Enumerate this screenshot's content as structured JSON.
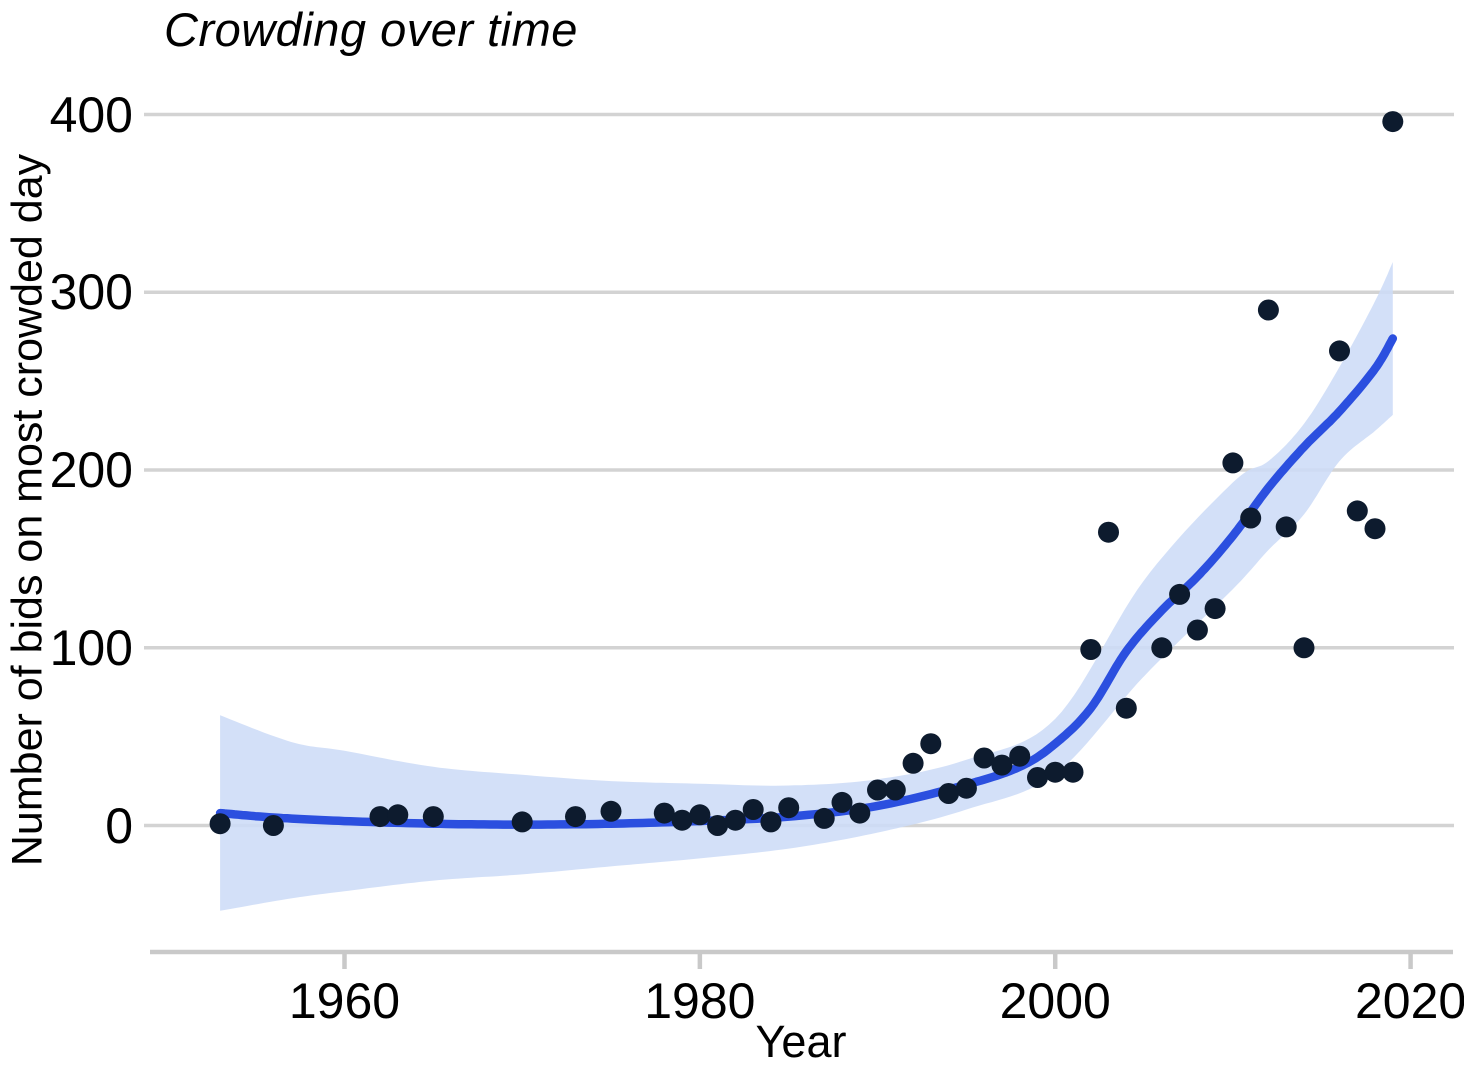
{
  "chart": {
    "title": "Crowding over time",
    "xlabel": "Year",
    "ylabel": "Number of bids on most crowded day"
  },
  "chart_data": {
    "type": "scatter",
    "title": "Crowding over time",
    "xlabel": "Year",
    "ylabel": "Number of bids on most crowded day",
    "x_ticks": [
      1960,
      1980,
      2000,
      2020
    ],
    "y_ticks": [
      0,
      100,
      200,
      300,
      400
    ],
    "xlim": [
      1949,
      2022.4
    ],
    "ylim": [
      -71,
      460
    ],
    "grid": "horizontal-only",
    "legend": "none",
    "points": [
      [
        1953,
        1
      ],
      [
        1956,
        0
      ],
      [
        1962,
        5
      ],
      [
        1963,
        6
      ],
      [
        1965,
        5
      ],
      [
        1970,
        2
      ],
      [
        1973,
        5
      ],
      [
        1975,
        8
      ],
      [
        1978,
        7
      ],
      [
        1979,
        3
      ],
      [
        1980,
        6
      ],
      [
        1981,
        0
      ],
      [
        1982,
        3
      ],
      [
        1983,
        9
      ],
      [
        1984,
        2
      ],
      [
        1985,
        10
      ],
      [
        1987,
        4
      ],
      [
        1988,
        13
      ],
      [
        1989,
        7
      ],
      [
        1990,
        20
      ],
      [
        1991,
        20
      ],
      [
        1992,
        35
      ],
      [
        1993,
        46
      ],
      [
        1994,
        18
      ],
      [
        1995,
        21
      ],
      [
        1996,
        38
      ],
      [
        1997,
        34
      ],
      [
        1998,
        39
      ],
      [
        1999,
        27
      ],
      [
        2000,
        30
      ],
      [
        2001,
        30
      ],
      [
        2002,
        99
      ],
      [
        2003,
        165
      ],
      [
        2004,
        66
      ],
      [
        2006,
        100
      ],
      [
        2007,
        130
      ],
      [
        2008,
        110
      ],
      [
        2009,
        122
      ],
      [
        2010,
        204
      ],
      [
        2011,
        173
      ],
      [
        2012,
        290
      ],
      [
        2013,
        168
      ],
      [
        2014,
        100
      ],
      [
        2016,
        267
      ],
      [
        2017,
        177
      ],
      [
        2018,
        167
      ],
      [
        2019,
        396
      ]
    ],
    "smooth_line": {
      "name": "loess-fit",
      "points": [
        [
          1953,
          7
        ],
        [
          1956,
          4.5
        ],
        [
          1960,
          2.5
        ],
        [
          1965,
          1
        ],
        [
          1970,
          0.5
        ],
        [
          1975,
          1
        ],
        [
          1980,
          2.5
        ],
        [
          1985,
          5
        ],
        [
          1990,
          11
        ],
        [
          1995,
          23
        ],
        [
          1998,
          33
        ],
        [
          2000,
          46
        ],
        [
          2002,
          66
        ],
        [
          2004,
          98
        ],
        [
          2006,
          121
        ],
        [
          2008,
          140
        ],
        [
          2010,
          163
        ],
        [
          2012,
          190
        ],
        [
          2014,
          213
        ],
        [
          2016,
          233
        ],
        [
          2018,
          257
        ],
        [
          2019,
          274
        ]
      ]
    },
    "confidence_band": {
      "name": "95%-confidence-band",
      "points_year_lower_upper": [
        [
          1953,
          -48,
          62
        ],
        [
          1957,
          -41,
          47
        ],
        [
          1960,
          -37,
          42
        ],
        [
          1965,
          -31,
          33
        ],
        [
          1970,
          -27.5,
          28.5
        ],
        [
          1975,
          -23,
          25
        ],
        [
          1980,
          -18.5,
          23.5
        ],
        [
          1985,
          -13,
          22.5
        ],
        [
          1990,
          -4,
          26
        ],
        [
          1995,
          9,
          37
        ],
        [
          2000,
          29,
          60
        ],
        [
          2005,
          84,
          138
        ],
        [
          2010,
          133,
          193
        ],
        [
          2012,
          155,
          205
        ],
        [
          2014,
          175,
          226
        ],
        [
          2016,
          205,
          258
        ],
        [
          2018,
          222,
          295
        ],
        [
          2019,
          231,
          317
        ]
      ]
    },
    "colors": {
      "point": "#0d1b2e",
      "line": "#2b4fdf",
      "band": "#cddcf7",
      "grid": "#d3d3d3",
      "axis": "#c9c9c9",
      "text": "#000000",
      "background": "#ffffff"
    }
  }
}
